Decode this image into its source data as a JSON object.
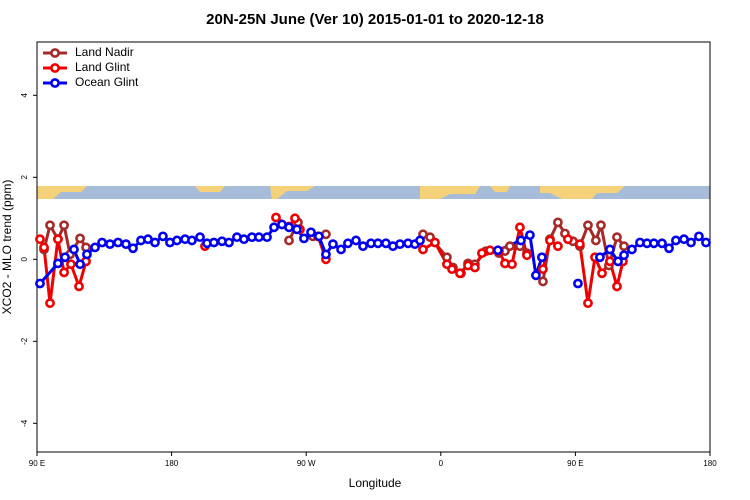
{
  "chart_data": {
    "type": "line",
    "title": "20N-25N June (Ver 10)   2015-01-01 to 2020-12-18",
    "x_label": "Longitude",
    "y_label": "XCO2 - MLO trend (ppm)",
    "xlim": [
      90,
      540
    ],
    "xticks": [
      {
        "value": 90,
        "label": "90 E"
      },
      180,
      {
        "value": 270,
        "label": "90 W"
      },
      {
        "value": 360,
        "label": "0"
      },
      {
        "value": 450,
        "label": "90 E"
      },
      {
        "value": 540,
        "label": "180"
      }
    ],
    "ylim": [
      -4.7,
      5.3
    ],
    "yticks": [
      -4,
      -2,
      0,
      2,
      4
    ],
    "legend_position": "top-left",
    "series": [
      {
        "name": "Land Nadir",
        "color": "#a52a2a",
        "x": [
          94.7,
          98.7,
          104.0,
          108.1,
          112.1,
          118.8,
          122.8,
          null,
          258.5,
          264.5,
          null,
          274.5,
          283.2,
          null,
          348.1,
          352.8,
          364.1,
          368.1,
          373.5,
          378.2,
          382.8,
          390.2,
          398.9,
          402.9,
          406.2,
          412.9,
          417.6,
          null,
          428.3,
          433.0,
          438.3,
          443.0,
          448.4,
          453.0,
          458.4,
          463.7,
          467.1,
          472.4,
          477.8,
          482.5
        ],
        "values": [
          0.24,
          0.83,
          0.49,
          0.83,
          0.12,
          0.51,
          0.29,
          null,
          0.46,
          0.9,
          null,
          0.56,
          0.61,
          null,
          0.61,
          0.54,
          0.05,
          -0.2,
          -0.34,
          -0.1,
          -0.12,
          0.2,
          0.15,
          0.2,
          0.32,
          0.32,
          0.15,
          null,
          -0.54,
          0.49,
          0.9,
          0.63,
          0.44,
          0.32,
          0.83,
          0.46,
          0.83,
          -0.15,
          0.54,
          0.32
        ]
      },
      {
        "name": "Land Glint",
        "color": "#ee0000",
        "x": [
          92.0,
          94.7,
          98.7,
          104.0,
          108.1,
          112.7,
          118.1,
          122.8,
          null,
          202.3,
          null,
          249.8,
          258.5,
          262.5,
          265.8,
          null,
          277.9,
          283.2,
          null,
          348.1,
          356.1,
          364.1,
          367.5,
          372.8,
          378.2,
          382.8,
          387.5,
          392.9,
          398.9,
          402.9,
          407.6,
          412.9,
          417.6,
          null,
          428.3,
          433.0,
          438.3,
          null,
          445.0,
          453.0,
          458.4,
          463.1,
          467.8,
          473.1,
          477.8,
          481.8
        ],
        "values": [
          0.49,
          0.29,
          -1.07,
          0.49,
          -0.32,
          -0.12,
          -0.66,
          -0.05,
          null,
          0.32,
          null,
          1.02,
          0.8,
          1.0,
          0.73,
          null,
          0.56,
          0.0,
          null,
          0.24,
          0.41,
          -0.12,
          -0.24,
          -0.34,
          -0.15,
          -0.2,
          0.15,
          0.22,
          0.2,
          -0.1,
          -0.12,
          0.78,
          0.1,
          null,
          -0.24,
          0.46,
          0.32,
          null,
          0.49,
          0.37,
          -1.07,
          0.05,
          -0.34,
          -0.05,
          -0.66,
          -0.05
        ]
      },
      {
        "name": "Ocean Glint",
        "color": "#0000ee",
        "x": [
          92.0,
          104.0,
          108.7,
          114.7,
          118.8,
          123.4,
          128.8,
          133.5,
          138.8,
          144.2,
          149.5,
          154.2,
          159.5,
          164.2,
          168.9,
          174.2,
          178.9,
          183.6,
          189.0,
          193.6,
          199.0,
          203.7,
          208.3,
          213.7,
          218.4,
          223.7,
          228.4,
          233.7,
          238.4,
          243.8,
          248.5,
          253.8,
          258.5,
          263.8,
          268.5,
          273.2,
          278.5,
          283.2,
          287.9,
          293.3,
          297.9,
          303.3,
          308.0,
          313.3,
          318.0,
          323.3,
          328.0,
          332.7,
          338.1,
          342.7,
          346.1,
          null,
          398.2,
          413.6,
          419.6,
          423.6,
          427.6,
          null,
          451.7,
          null,
          466.4,
          473.1,
          478.5,
          482.5,
          487.8,
          493.2,
          497.9,
          502.5,
          507.9,
          512.6,
          517.2,
          522.6,
          527.3,
          532.6,
          537.3
        ],
        "values": [
          -0.59,
          -0.1,
          0.05,
          0.24,
          -0.12,
          0.12,
          0.29,
          0.41,
          0.37,
          0.41,
          0.37,
          0.27,
          0.46,
          0.49,
          0.41,
          0.56,
          0.41,
          0.46,
          0.49,
          0.46,
          0.54,
          0.39,
          0.41,
          0.44,
          0.41,
          0.54,
          0.49,
          0.54,
          0.54,
          0.54,
          0.78,
          0.85,
          0.78,
          0.73,
          0.51,
          0.66,
          0.56,
          0.12,
          0.37,
          0.24,
          0.39,
          0.46,
          0.32,
          0.39,
          0.39,
          0.39,
          0.32,
          0.37,
          0.39,
          0.37,
          0.46,
          null,
          0.22,
          0.46,
          0.59,
          -0.39,
          0.05,
          null,
          -0.59,
          null,
          0.05,
          0.24,
          -0.05,
          0.1,
          0.24,
          0.41,
          0.39,
          0.39,
          0.39,
          0.27,
          0.46,
          0.49,
          0.41,
          0.56,
          0.41
        ]
      }
    ]
  }
}
